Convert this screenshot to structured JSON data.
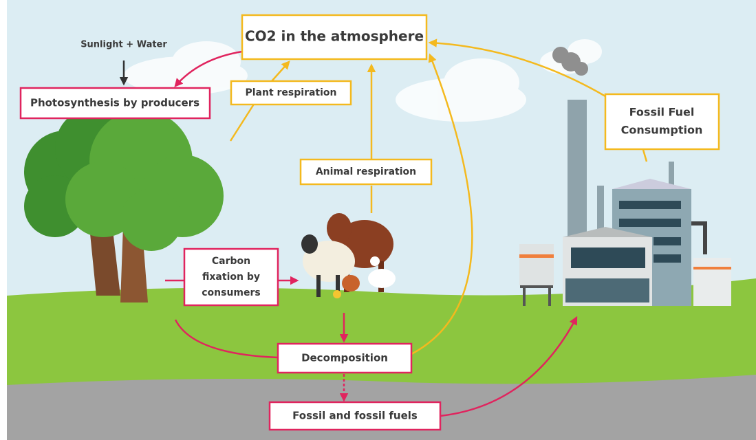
{
  "title": "CO2 in the atmosphere",
  "nodes": [
    {
      "label": "Sunlight + Water"
    },
    {
      "label": "Photosynthesis by producers"
    },
    {
      "label": "Plant respiration"
    },
    {
      "label": "Animal respiration"
    },
    {
      "lines": [
        "Carbon",
        "fixation by",
        "consumers"
      ]
    },
    {
      "label": "Decomposition"
    },
    {
      "label": "Fossil and fossil fuels"
    },
    {
      "lines": [
        "Fossil Fuel",
        "Consumption"
      ]
    }
  ]
}
